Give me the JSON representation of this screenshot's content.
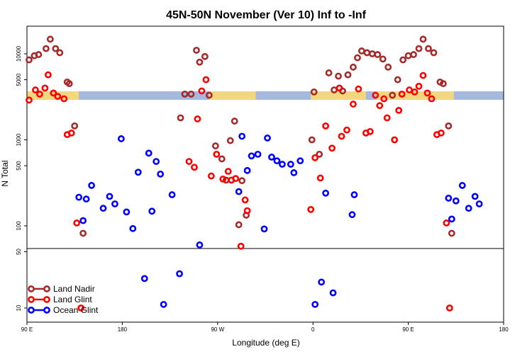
{
  "chart_data": {
    "type": "scatter",
    "title": "45N-50N November (Ver 10)   Inf to -Inf",
    "xlabel": "Longitude (deg E)",
    "ylabel": "N Total",
    "x_ticks": [
      {
        "lon": 90,
        "label": "90 E"
      },
      {
        "lon": 180,
        "label": "180"
      },
      {
        "lon": 270,
        "label": "90 W"
      },
      {
        "lon": 360,
        "label": "0"
      },
      {
        "lon": 450,
        "label": "90 E"
      },
      {
        "lon": 540,
        "label": "180"
      }
    ],
    "y_ticks": [
      {
        "value": 10,
        "label": "10"
      },
      {
        "value": 50,
        "label": "50"
      },
      {
        "value": 100,
        "label": "100"
      },
      {
        "value": 500,
        "label": "500"
      },
      {
        "value": 1000,
        "label": "1000"
      },
      {
        "value": 5000,
        "label": "5000"
      },
      {
        "value": 10000,
        "label": "10000"
      }
    ],
    "xlim": [
      90,
      540
    ],
    "y_scale": "log",
    "land_ocean_band_colors": {
      "land": "#f2d680",
      "ocean": "#a5b8dd"
    },
    "legend_position": "bottom-left",
    "series": [
      {
        "name": "Land Nadir",
        "color": "#a52a2a",
        "points": [
          [
            92,
            8500
          ],
          [
            97,
            9500
          ],
          [
            101,
            9800
          ],
          [
            108,
            11500
          ],
          [
            112,
            14800
          ],
          [
            117,
            11500
          ],
          [
            121,
            10300
          ],
          [
            128,
            4700
          ],
          [
            130,
            4500
          ],
          [
            135,
            1450
          ],
          [
            143,
            82
          ],
          [
            235,
            1800
          ],
          [
            239,
            3400
          ],
          [
            245,
            3400
          ],
          [
            250,
            11000
          ],
          [
            253,
            8000
          ],
          [
            258,
            9300
          ],
          [
            262,
            3300
          ],
          [
            268,
            850
          ],
          [
            274,
            600
          ],
          [
            278,
            340
          ],
          [
            282,
            980
          ],
          [
            286,
            1650
          ],
          [
            290,
            103
          ],
          [
            293,
            335
          ],
          [
            297,
            133
          ],
          [
            359,
            1000
          ],
          [
            361,
            3600
          ],
          [
            366,
            680
          ],
          [
            375,
            6000
          ],
          [
            380,
            3800
          ],
          [
            384,
            5500
          ],
          [
            388,
            3700
          ],
          [
            393,
            5700
          ],
          [
            398,
            7000
          ],
          [
            402,
            9000
          ],
          [
            406,
            10800
          ],
          [
            411,
            10300
          ],
          [
            416,
            10000
          ],
          [
            421,
            9800
          ],
          [
            426,
            8700
          ],
          [
            431,
            7000
          ],
          [
            435,
            3300
          ],
          [
            440,
            5000
          ],
          [
            445,
            8500
          ],
          [
            450,
            9500
          ],
          [
            455,
            9800
          ],
          [
            460,
            11500
          ],
          [
            464,
            14800
          ],
          [
            469,
            11500
          ],
          [
            474,
            10300
          ],
          [
            480,
            4700
          ],
          [
            483,
            4500
          ],
          [
            488,
            1450
          ],
          [
            491,
            82
          ]
        ]
      },
      {
        "name": "Land Glint",
        "color": "#ff0000",
        "points": [
          [
            92,
            2900
          ],
          [
            98,
            3800
          ],
          [
            102,
            3400
          ],
          [
            107,
            4000
          ],
          [
            110,
            5700
          ],
          [
            115,
            3500
          ],
          [
            119,
            3200
          ],
          [
            125,
            3000
          ],
          [
            128,
            1150
          ],
          [
            132,
            1200
          ],
          [
            137,
            108
          ],
          [
            141,
            10
          ],
          [
            243,
            560
          ],
          [
            248,
            480
          ],
          [
            251,
            1750
          ],
          [
            255,
            3700
          ],
          [
            259,
            5000
          ],
          [
            264,
            380
          ],
          [
            269,
            680
          ],
          [
            275,
            350
          ],
          [
            280,
            430
          ],
          [
            283,
            340
          ],
          [
            287,
            355
          ],
          [
            292,
            58
          ],
          [
            296,
            200
          ],
          [
            298,
            150
          ],
          [
            358,
            155
          ],
          [
            362,
            620
          ],
          [
            367,
            360
          ],
          [
            372,
            1450
          ],
          [
            378,
            800
          ],
          [
            385,
            4000
          ],
          [
            387,
            1100
          ],
          [
            392,
            1300
          ],
          [
            398,
            2600
          ],
          [
            403,
            3900
          ],
          [
            410,
            1200
          ],
          [
            414,
            1250
          ],
          [
            419,
            3300
          ],
          [
            423,
            2500
          ],
          [
            427,
            3000
          ],
          [
            430,
            1800
          ],
          [
            437,
            1000
          ],
          [
            441,
            2200
          ],
          [
            444,
            3400
          ],
          [
            451,
            3800
          ],
          [
            456,
            3600
          ],
          [
            460,
            4200
          ],
          [
            464,
            5600
          ],
          [
            468,
            3500
          ],
          [
            472,
            3000
          ],
          [
            477,
            1150
          ],
          [
            481,
            1200
          ],
          [
            486,
            108
          ],
          [
            489,
            10
          ]
        ]
      },
      {
        "name": "Ocean Glint",
        "color": "#0000ff",
        "points": [
          [
            139,
            215
          ],
          [
            143,
            115
          ],
          [
            146,
            205
          ],
          [
            151,
            295
          ],
          [
            162,
            160
          ],
          [
            168,
            220
          ],
          [
            173,
            180
          ],
          [
            179,
            1030
          ],
          [
            184,
            145
          ],
          [
            190,
            93
          ],
          [
            195,
            420
          ],
          [
            201,
            22
          ],
          [
            205,
            700
          ],
          [
            208,
            148
          ],
          [
            212,
            560
          ],
          [
            216,
            400
          ],
          [
            219,
            11
          ],
          [
            227,
            230
          ],
          [
            234,
            25
          ],
          [
            253,
            60
          ],
          [
            290,
            250
          ],
          [
            293,
            1100
          ],
          [
            298,
            440
          ],
          [
            302,
            650
          ],
          [
            308,
            680
          ],
          [
            314,
            92
          ],
          [
            317,
            1050
          ],
          [
            321,
            630
          ],
          [
            326,
            570
          ],
          [
            331,
            520
          ],
          [
            339,
            520
          ],
          [
            342,
            415
          ],
          [
            348,
            570
          ],
          [
            362,
            11
          ],
          [
            368,
            20
          ],
          [
            372,
            240
          ],
          [
            379,
            15
          ],
          [
            397,
            135
          ],
          [
            399,
            230
          ],
          [
            488,
            210
          ],
          [
            491,
            120
          ],
          [
            495,
            195
          ],
          [
            501,
            295
          ],
          [
            507,
            160
          ],
          [
            513,
            220
          ],
          [
            517,
            180
          ]
        ]
      }
    ]
  }
}
